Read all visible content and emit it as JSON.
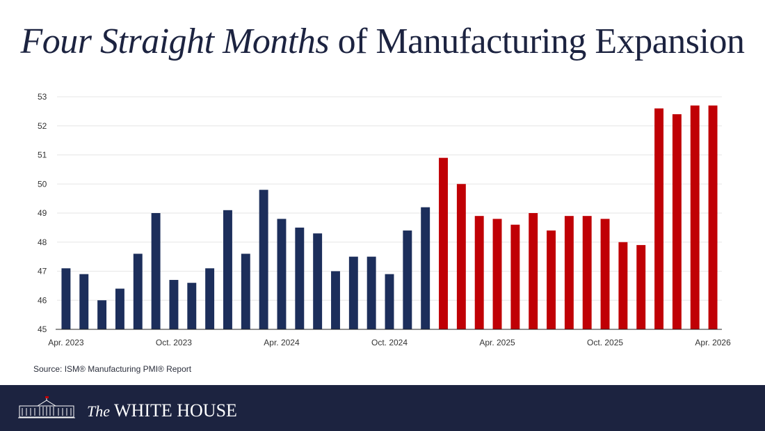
{
  "title": {
    "italic": "Four Straight Months",
    "rest": " of Manufacturing Expansion"
  },
  "source": "Source: ISM® Manufacturing PMI® Report",
  "footer": {
    "the": "The",
    "name": "WHITE HOUSE"
  },
  "colors": {
    "blue": "#1c2e5b",
    "red": "#c00005",
    "grid": "#e6e6e6",
    "axis": "#222222",
    "footer_bg": "#1c2340"
  },
  "chart_data": {
    "type": "bar",
    "xlabel": "",
    "ylabel": "",
    "ylim": [
      45,
      53
    ],
    "yticks": [
      45,
      46,
      47,
      48,
      49,
      50,
      51,
      52,
      53
    ],
    "grid": true,
    "categories": [
      "Apr. 2023",
      "May 2023",
      "Jun. 2023",
      "Jul. 2023",
      "Aug. 2023",
      "Sep. 2023",
      "Oct. 2023",
      "Nov. 2023",
      "Dec. 2023",
      "Jan. 2024",
      "Feb. 2024",
      "Mar. 2024",
      "Apr. 2024",
      "May 2024",
      "Jun. 2024",
      "Jul. 2024",
      "Aug. 2024",
      "Sep. 2024",
      "Oct. 2024",
      "Nov. 2024",
      "Dec. 2024",
      "Jan. 2025",
      "Feb. 2025",
      "Mar. 2025",
      "Apr. 2025",
      "May 2025",
      "Jun. 2025",
      "Jul. 2025",
      "Aug. 2025",
      "Sep. 2025",
      "Oct. 2025",
      "Nov. 2025",
      "Dec. 2025",
      "Jan. 2026",
      "Feb. 2026",
      "Mar. 2026",
      "Apr. 2026"
    ],
    "tick_labels": [
      {
        "index": 0,
        "label": "Apr. 2023"
      },
      {
        "index": 6,
        "label": "Oct. 2023"
      },
      {
        "index": 12,
        "label": "Apr. 2024"
      },
      {
        "index": 18,
        "label": "Oct. 2024"
      },
      {
        "index": 24,
        "label": "Apr. 2025"
      },
      {
        "index": 30,
        "label": "Oct. 2025"
      },
      {
        "index": 36,
        "label": "Apr. 2026"
      }
    ],
    "values": [
      47.1,
      46.9,
      46.0,
      46.4,
      47.6,
      49.0,
      46.7,
      46.6,
      47.1,
      49.1,
      47.6,
      49.8,
      48.8,
      48.5,
      48.3,
      47.0,
      47.5,
      47.5,
      46.9,
      48.4,
      49.2,
      50.9,
      50.0,
      48.9,
      48.8,
      48.6,
      49.0,
      48.4,
      48.9,
      48.9,
      48.8,
      48.0,
      47.9,
      52.6,
      52.4,
      52.7,
      52.7
    ],
    "bar_colors": [
      "blue",
      "blue",
      "blue",
      "blue",
      "blue",
      "blue",
      "blue",
      "blue",
      "blue",
      "blue",
      "blue",
      "blue",
      "blue",
      "blue",
      "blue",
      "blue",
      "blue",
      "blue",
      "blue",
      "blue",
      "blue",
      "red",
      "red",
      "red",
      "red",
      "red",
      "red",
      "red",
      "red",
      "red",
      "red",
      "red",
      "red",
      "red",
      "red",
      "red",
      "red"
    ]
  }
}
